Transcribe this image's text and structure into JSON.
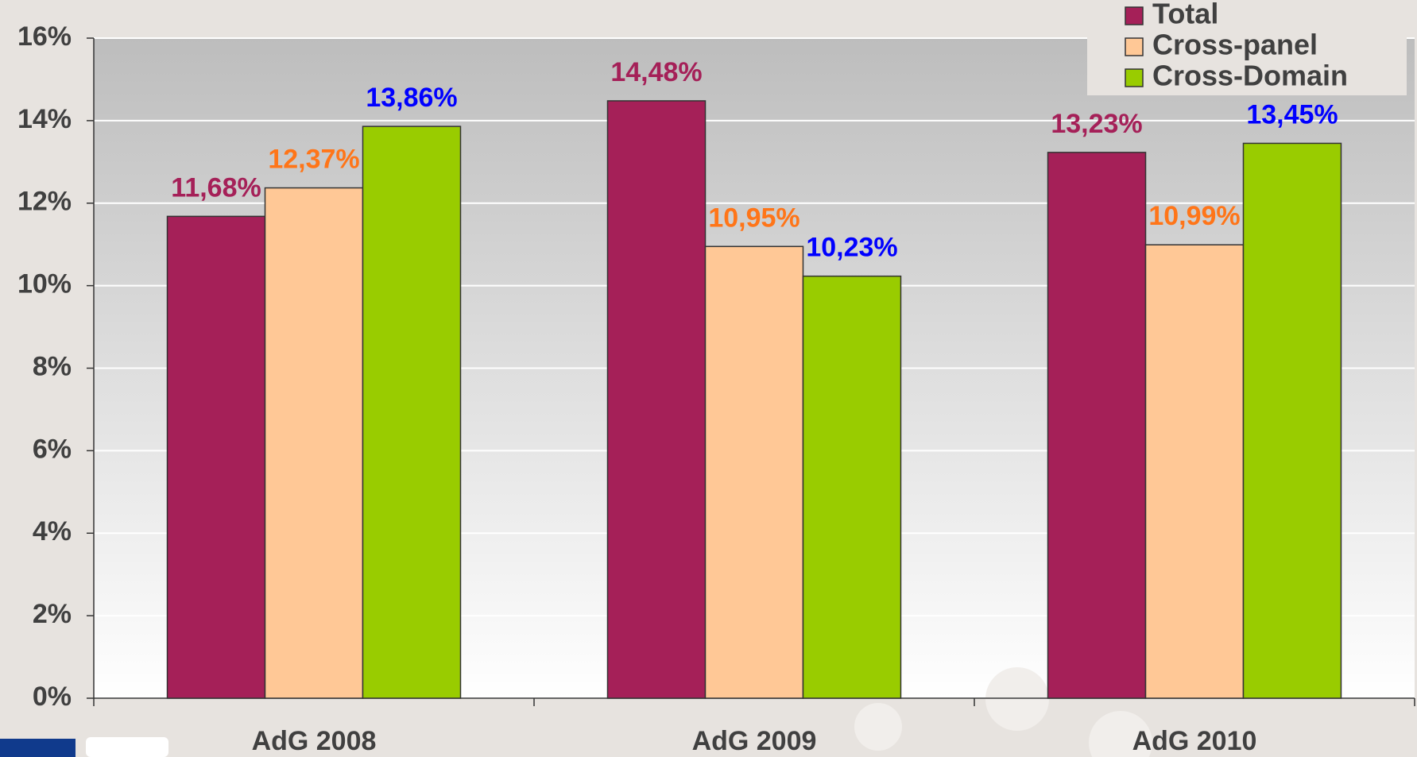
{
  "chart_data": {
    "type": "bar",
    "categories": [
      "AdG 2008",
      "AdG 2009",
      "AdG 2010"
    ],
    "series": [
      {
        "name": "Total",
        "color": "#a52058",
        "label_color": "#a52058",
        "values": [
          11.68,
          14.48,
          13.23
        ],
        "value_labels": [
          "11,68%",
          "14,48%",
          "13,23%"
        ]
      },
      {
        "name": "Cross-panel",
        "color": "#ffc896",
        "label_color": "#ff7518",
        "values": [
          12.37,
          10.95,
          10.99
        ],
        "value_labels": [
          "12,37%",
          "10,95%",
          "10,99%"
        ]
      },
      {
        "name": "Cross-Domain",
        "color": "#99cc00",
        "label_color": "#0000ff",
        "values": [
          13.86,
          10.23,
          13.45
        ],
        "value_labels": [
          "13,86%",
          "10,23%",
          "13,45%"
        ]
      }
    ],
    "ylim": [
      0,
      16
    ],
    "yticks": [
      {
        "value": 0,
        "label": "0%"
      },
      {
        "value": 2,
        "label": "2%"
      },
      {
        "value": 4,
        "label": "4%"
      },
      {
        "value": 6,
        "label": "6%"
      },
      {
        "value": 8,
        "label": "8%"
      },
      {
        "value": 10,
        "label": "10%"
      },
      {
        "value": 12,
        "label": "12%"
      },
      {
        "value": 14,
        "label": "14%"
      },
      {
        "value": 16,
        "label": "16%"
      }
    ],
    "grid": true,
    "legend": "top-right"
  }
}
